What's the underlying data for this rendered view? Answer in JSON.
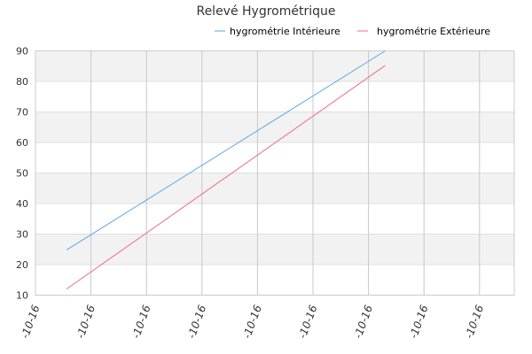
{
  "chart_data": {
    "type": "line",
    "title": "Relevé Hygrométrique",
    "xlabel": "",
    "ylabel": "",
    "ylim": [
      10,
      90
    ],
    "yticks": [
      10,
      20,
      30,
      40,
      50,
      60,
      70,
      80,
      90
    ],
    "x_tick_labels": [
      "-10-16",
      "-10-16",
      "-10-16",
      "-10-16",
      "-10-16",
      "-10-16",
      "-10-16",
      "-10-16",
      "-10-16"
    ],
    "grid": true,
    "legend_position": "top-right",
    "series": [
      {
        "name": "hygrométrie Intérieure",
        "color": "#5aa5e6",
        "x": [
          0.56,
          6.3
        ],
        "y": [
          24.8,
          90
        ]
      },
      {
        "name": "hygrométrie Extérieure",
        "color": "#ee6b8e",
        "x": [
          0.56,
          6.3
        ],
        "y": [
          12.0,
          85.2
        ]
      }
    ]
  }
}
